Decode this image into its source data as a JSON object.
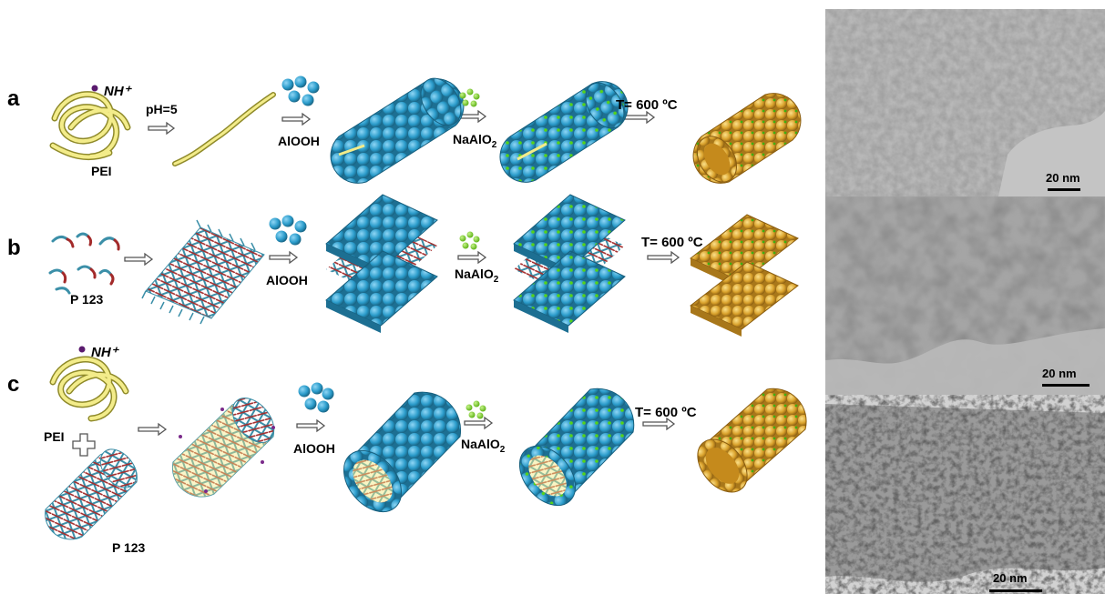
{
  "panels": [
    {
      "letter": "a",
      "template_labels": [
        "NH⁺",
        "PEI"
      ],
      "steps": [
        "pH=5",
        "AlOOH",
        "NaAlO",
        "T= 600 ºC"
      ],
      "tem_scale": "20 nm"
    },
    {
      "letter": "b",
      "template_labels": [
        "P 123"
      ],
      "steps": [
        "AlOOH",
        "NaAlO",
        "T= 600 ºC"
      ],
      "tem_scale": "20 nm"
    },
    {
      "letter": "c",
      "template_labels": [
        "NH⁺",
        "PEI",
        "P 123"
      ],
      "steps": [
        "AlOOH",
        "NaAlO",
        "T= 600 ºC"
      ],
      "tem_scale": "20 nm"
    }
  ],
  "subscript": "2",
  "colors": {
    "aloooh_blue": "#2b9ccb",
    "naalo2_green": "#7ed321",
    "alumina_gold": "#d9a12b",
    "pei_yellow": "#e8e07a",
    "p123_red": "#a32a2a",
    "p123_teal": "#3b8fa8",
    "nh_purple": "#5a1a6e"
  }
}
